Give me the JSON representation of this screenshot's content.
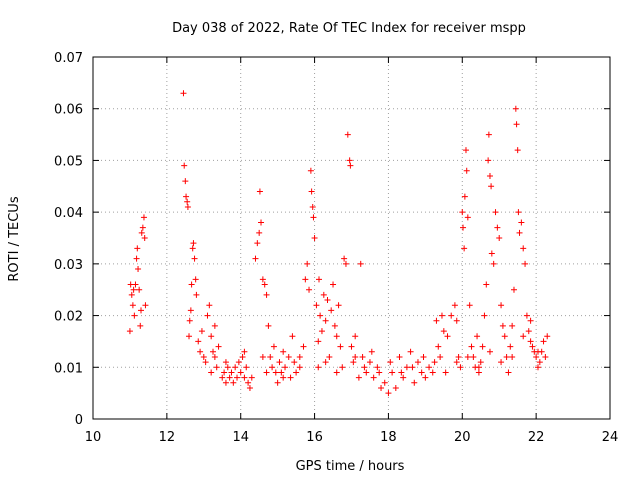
{
  "chart_data": {
    "type": "scatter",
    "title": "Day 038 of 2022, Rate Of TEC Index for receiver mspp",
    "xlabel": "GPS time / hours",
    "ylabel": "ROTI / TECUs",
    "xlim": [
      10,
      24
    ],
    "ylim": [
      0,
      0.07
    ],
    "x_ticks": [
      "10",
      "12",
      "14",
      "16",
      "18",
      "20",
      "22",
      "24"
    ],
    "y_ticks": [
      "0",
      "0.01",
      "0.02",
      "0.03",
      "0.04",
      "0.05",
      "0.06",
      "0.07"
    ],
    "grid": true,
    "marker": "+",
    "colors": {
      "series": "#ff0000"
    },
    "series": [
      {
        "points": [
          [
            11.0,
            0.017
          ],
          [
            11.02,
            0.026
          ],
          [
            11.05,
            0.024
          ],
          [
            11.08,
            0.022
          ],
          [
            11.1,
            0.025
          ],
          [
            11.12,
            0.02
          ],
          [
            11.15,
            0.026
          ],
          [
            11.18,
            0.031
          ],
          [
            11.2,
            0.033
          ],
          [
            11.22,
            0.029
          ],
          [
            11.25,
            0.025
          ],
          [
            11.28,
            0.018
          ],
          [
            11.3,
            0.021
          ],
          [
            11.32,
            0.036
          ],
          [
            11.35,
            0.037
          ],
          [
            11.38,
            0.039
          ],
          [
            11.4,
            0.035
          ],
          [
            11.42,
            0.022
          ],
          [
            12.45,
            0.063
          ],
          [
            12.47,
            0.049
          ],
          [
            12.5,
            0.046
          ],
          [
            12.52,
            0.043
          ],
          [
            12.55,
            0.042
          ],
          [
            12.57,
            0.041
          ],
          [
            12.6,
            0.016
          ],
          [
            12.62,
            0.019
          ],
          [
            12.65,
            0.021
          ],
          [
            12.67,
            0.026
          ],
          [
            12.7,
            0.033
          ],
          [
            12.72,
            0.034
          ],
          [
            12.75,
            0.031
          ],
          [
            12.78,
            0.027
          ],
          [
            12.8,
            0.024
          ],
          [
            12.85,
            0.015
          ],
          [
            12.9,
            0.013
          ],
          [
            12.95,
            0.017
          ],
          [
            13.0,
            0.012
          ],
          [
            13.05,
            0.011
          ],
          [
            13.1,
            0.02
          ],
          [
            13.15,
            0.022
          ],
          [
            13.2,
            0.016
          ],
          [
            13.25,
            0.013
          ],
          [
            13.3,
            0.018
          ],
          [
            13.35,
            0.01
          ],
          [
            13.4,
            0.014
          ],
          [
            13.5,
            0.008
          ],
          [
            13.55,
            0.009
          ],
          [
            13.6,
            0.007
          ],
          [
            13.65,
            0.01
          ],
          [
            13.7,
            0.008
          ],
          [
            13.75,
            0.009
          ],
          [
            13.8,
            0.007
          ],
          [
            13.85,
            0.01
          ],
          [
            13.9,
            0.008
          ],
          [
            13.95,
            0.011
          ],
          [
            14.0,
            0.009
          ],
          [
            14.05,
            0.012
          ],
          [
            14.1,
            0.008
          ],
          [
            14.15,
            0.01
          ],
          [
            14.2,
            0.007
          ],
          [
            14.25,
            0.006
          ],
          [
            14.3,
            0.008
          ],
          [
            14.4,
            0.031
          ],
          [
            14.45,
            0.034
          ],
          [
            14.5,
            0.036
          ],
          [
            14.52,
            0.044
          ],
          [
            14.55,
            0.038
          ],
          [
            14.6,
            0.027
          ],
          [
            14.65,
            0.026
          ],
          [
            14.7,
            0.024
          ],
          [
            14.75,
            0.018
          ],
          [
            14.8,
            0.012
          ],
          [
            14.85,
            0.01
          ],
          [
            14.9,
            0.014
          ],
          [
            14.95,
            0.009
          ],
          [
            15.0,
            0.007
          ],
          [
            15.05,
            0.011
          ],
          [
            15.1,
            0.009
          ],
          [
            15.15,
            0.013
          ],
          [
            15.2,
            0.01
          ],
          [
            15.3,
            0.012
          ],
          [
            15.35,
            0.008
          ],
          [
            15.4,
            0.016
          ],
          [
            15.45,
            0.011
          ],
          [
            15.5,
            0.009
          ],
          [
            15.6,
            0.01
          ],
          [
            15.7,
            0.014
          ],
          [
            15.75,
            0.027
          ],
          [
            15.8,
            0.03
          ],
          [
            15.85,
            0.025
          ],
          [
            15.9,
            0.048
          ],
          [
            15.92,
            0.044
          ],
          [
            15.95,
            0.041
          ],
          [
            15.97,
            0.039
          ],
          [
            16.0,
            0.035
          ],
          [
            16.05,
            0.022
          ],
          [
            16.1,
            0.015
          ],
          [
            16.12,
            0.027
          ],
          [
            16.15,
            0.02
          ],
          [
            16.2,
            0.017
          ],
          [
            16.25,
            0.024
          ],
          [
            16.3,
            0.019
          ],
          [
            16.35,
            0.023
          ],
          [
            16.4,
            0.012
          ],
          [
            16.45,
            0.021
          ],
          [
            16.5,
            0.026
          ],
          [
            16.55,
            0.018
          ],
          [
            16.6,
            0.016
          ],
          [
            16.65,
            0.022
          ],
          [
            16.7,
            0.014
          ],
          [
            16.75,
            0.01
          ],
          [
            16.8,
            0.031
          ],
          [
            16.85,
            0.03
          ],
          [
            16.9,
            0.055
          ],
          [
            16.95,
            0.05
          ],
          [
            16.97,
            0.049
          ],
          [
            17.0,
            0.014
          ],
          [
            17.05,
            0.011
          ],
          [
            17.1,
            0.016
          ],
          [
            17.2,
            0.008
          ],
          [
            17.25,
            0.03
          ],
          [
            17.3,
            0.012
          ],
          [
            17.4,
            0.009
          ],
          [
            17.5,
            0.011
          ],
          [
            17.6,
            0.008
          ],
          [
            17.7,
            0.01
          ],
          [
            17.8,
            0.006
          ],
          [
            17.9,
            0.007
          ],
          [
            18.0,
            0.005
          ],
          [
            18.1,
            0.009
          ],
          [
            18.2,
            0.006
          ],
          [
            18.3,
            0.012
          ],
          [
            18.4,
            0.008
          ],
          [
            18.5,
            0.01
          ],
          [
            18.6,
            0.013
          ],
          [
            18.7,
            0.007
          ],
          [
            18.8,
            0.011
          ],
          [
            18.9,
            0.009
          ],
          [
            19.0,
            0.008
          ],
          [
            19.1,
            0.01
          ],
          [
            19.2,
            0.009
          ],
          [
            19.3,
            0.019
          ],
          [
            19.35,
            0.014
          ],
          [
            19.4,
            0.012
          ],
          [
            19.45,
            0.02
          ],
          [
            19.5,
            0.017
          ],
          [
            19.6,
            0.016
          ],
          [
            19.7,
            0.02
          ],
          [
            19.8,
            0.022
          ],
          [
            19.85,
            0.019
          ],
          [
            19.9,
            0.012
          ],
          [
            19.95,
            0.01
          ],
          [
            20.0,
            0.04
          ],
          [
            20.02,
            0.037
          ],
          [
            20.05,
            0.033
          ],
          [
            20.07,
            0.043
          ],
          [
            20.1,
            0.052
          ],
          [
            20.12,
            0.048
          ],
          [
            20.15,
            0.039
          ],
          [
            20.2,
            0.022
          ],
          [
            20.25,
            0.014
          ],
          [
            20.3,
            0.012
          ],
          [
            20.35,
            0.01
          ],
          [
            20.4,
            0.016
          ],
          [
            20.45,
            0.009
          ],
          [
            20.5,
            0.011
          ],
          [
            20.55,
            0.014
          ],
          [
            20.6,
            0.02
          ],
          [
            20.65,
            0.026
          ],
          [
            20.7,
            0.05
          ],
          [
            20.72,
            0.055
          ],
          [
            20.75,
            0.047
          ],
          [
            20.78,
            0.045
          ],
          [
            20.8,
            0.032
          ],
          [
            20.85,
            0.03
          ],
          [
            20.9,
            0.04
          ],
          [
            20.95,
            0.037
          ],
          [
            21.0,
            0.035
          ],
          [
            21.05,
            0.022
          ],
          [
            21.1,
            0.018
          ],
          [
            21.15,
            0.016
          ],
          [
            21.2,
            0.012
          ],
          [
            21.25,
            0.009
          ],
          [
            21.3,
            0.014
          ],
          [
            21.35,
            0.018
          ],
          [
            21.4,
            0.025
          ],
          [
            21.45,
            0.06
          ],
          [
            21.47,
            0.057
          ],
          [
            21.5,
            0.052
          ],
          [
            21.52,
            0.04
          ],
          [
            21.55,
            0.036
          ],
          [
            21.6,
            0.038
          ],
          [
            21.65,
            0.033
          ],
          [
            21.7,
            0.03
          ],
          [
            21.75,
            0.02
          ],
          [
            21.8,
            0.017
          ],
          [
            21.85,
            0.015
          ],
          [
            21.9,
            0.014
          ],
          [
            21.95,
            0.013
          ],
          [
            22.0,
            0.012
          ],
          [
            22.05,
            0.01
          ],
          [
            22.1,
            0.011
          ],
          [
            22.15,
            0.013
          ],
          [
            22.2,
            0.015
          ],
          [
            22.25,
            0.012
          ],
          [
            22.3,
            0.016
          ],
          [
            13.2,
            0.009
          ],
          [
            13.3,
            0.012
          ],
          [
            13.6,
            0.011
          ],
          [
            14.1,
            0.013
          ],
          [
            14.6,
            0.012
          ],
          [
            14.7,
            0.009
          ],
          [
            15.15,
            0.008
          ],
          [
            15.6,
            0.012
          ],
          [
            16.1,
            0.01
          ],
          [
            16.3,
            0.011
          ],
          [
            16.6,
            0.009
          ],
          [
            17.1,
            0.012
          ],
          [
            17.35,
            0.01
          ],
          [
            17.55,
            0.013
          ],
          [
            17.75,
            0.009
          ],
          [
            18.05,
            0.011
          ],
          [
            18.35,
            0.009
          ],
          [
            18.65,
            0.01
          ],
          [
            18.95,
            0.012
          ],
          [
            19.25,
            0.011
          ],
          [
            19.55,
            0.009
          ],
          [
            19.85,
            0.011
          ],
          [
            20.15,
            0.012
          ],
          [
            20.45,
            0.01
          ],
          [
            20.75,
            0.013
          ],
          [
            21.05,
            0.011
          ],
          [
            21.35,
            0.012
          ],
          [
            21.65,
            0.016
          ],
          [
            21.85,
            0.019
          ],
          [
            22.05,
            0.013
          ]
        ]
      }
    ]
  }
}
